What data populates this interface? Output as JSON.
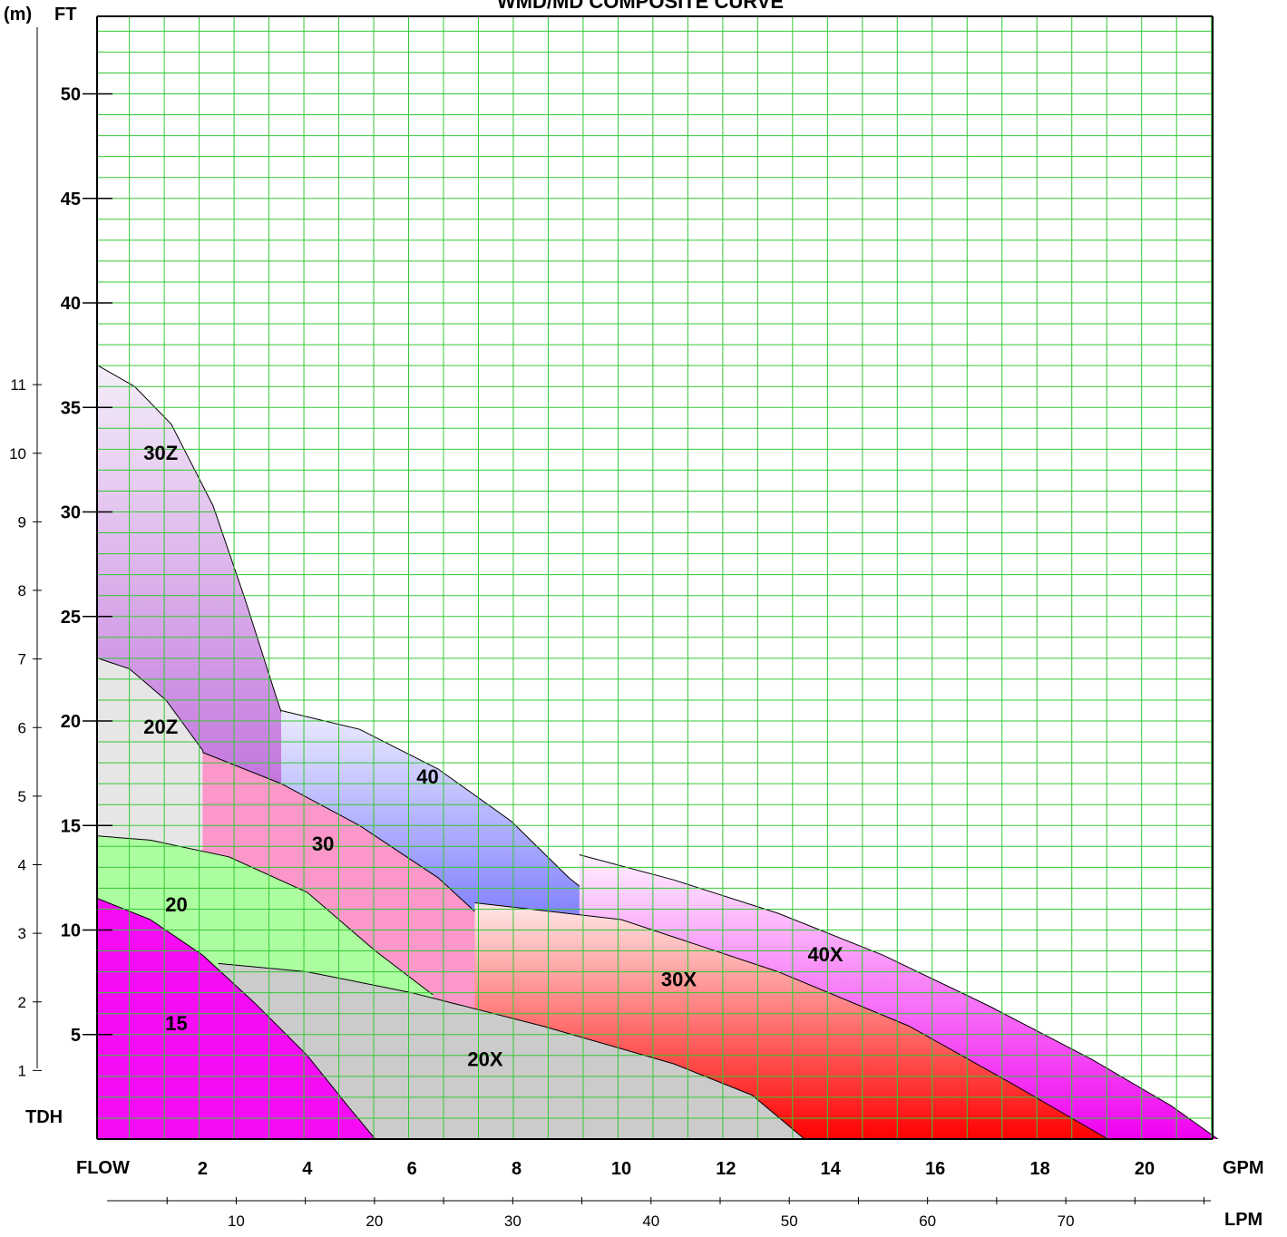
{
  "chart_data": {
    "type": "area",
    "title": "WMD/MD COMPOSITE CURVE",
    "y_axis": {
      "unit_label_ft": "FT",
      "unit_label_m": "(m)",
      "name": "TDH",
      "ft_ticks": [
        "5",
        "10",
        "15",
        "20",
        "25",
        "30",
        "35",
        "40",
        "45",
        "50"
      ],
      "m_ticks": [
        "1",
        "2",
        "3",
        "4",
        "5",
        "6",
        "7",
        "8",
        "9",
        "10",
        "11"
      ],
      "ylim_ft": [
        0,
        56
      ]
    },
    "x_axis": {
      "name": "FLOW",
      "unit_gpm": "GPM",
      "unit_lpm": "LPM",
      "gpm_ticks": [
        "2",
        "4",
        "6",
        "8",
        "10",
        "12",
        "14",
        "16",
        "18",
        "20"
      ],
      "lpm_ticks": [
        "10",
        "20",
        "30",
        "40",
        "50",
        "60",
        "70"
      ],
      "xlim_gpm": [
        0,
        21.4
      ]
    },
    "grid": true,
    "series": [
      {
        "name": "30Z",
        "color_top": "#f4eef8",
        "color_bottom": "#9a10c8",
        "label_pos": [
          1.2,
          32.5
        ],
        "curve": [
          [
            0,
            37.0
          ],
          [
            0.7,
            36.0
          ],
          [
            1.4,
            34.2
          ],
          [
            2.2,
            30.3
          ],
          [
            2.8,
            25.9
          ],
          [
            3.4,
            21.2
          ],
          [
            4.0,
            16.7
          ]
        ]
      },
      {
        "name": "20Z",
        "color": "#e6e6e6",
        "label_pos": [
          1.2,
          19.4
        ],
        "curve": [
          [
            0,
            23.0
          ],
          [
            0.6,
            22.5
          ],
          [
            1.3,
            21.0
          ],
          [
            2.0,
            18.6
          ],
          [
            2.7,
            13.5
          ]
        ]
      },
      {
        "name": "40",
        "color_top": "#ececff",
        "color_bottom": "#0f0fff",
        "label_pos": [
          6.3,
          17.0
        ],
        "curve": [
          [
            3.5,
            20.5
          ],
          [
            5.0,
            19.6
          ],
          [
            6.5,
            17.7
          ],
          [
            7.9,
            15.2
          ],
          [
            9.0,
            12.5
          ],
          [
            10.0,
            10.5
          ]
        ]
      },
      {
        "name": "30",
        "color": "#fb98c9",
        "label_pos": [
          4.3,
          13.8
        ],
        "curve": [
          [
            2.0,
            18.5
          ],
          [
            3.5,
            17.0
          ],
          [
            5.0,
            15.0
          ],
          [
            6.5,
            12.5
          ],
          [
            7.8,
            9.5
          ],
          [
            8.8,
            5.2
          ]
        ]
      },
      {
        "name": "20",
        "color": "#acfda0",
        "label_pos": [
          1.5,
          10.9
        ],
        "curve": [
          [
            0,
            14.5
          ],
          [
            1.0,
            14.3
          ],
          [
            2.5,
            13.5
          ],
          [
            4.0,
            11.8
          ],
          [
            5.3,
            9.0
          ],
          [
            6.4,
            6.9
          ]
        ]
      },
      {
        "name": "40X",
        "color_top": "#fff0ff",
        "color_bottom": "#f000f0",
        "label_pos": [
          13.9,
          8.5
        ],
        "curve": [
          [
            9.2,
            13.6
          ],
          [
            11.0,
            12.4
          ],
          [
            13.0,
            10.8
          ],
          [
            15.0,
            8.8
          ],
          [
            17.0,
            6.4
          ],
          [
            19.0,
            3.8
          ],
          [
            20.5,
            1.6
          ],
          [
            21.4,
            0
          ]
        ]
      },
      {
        "name": "30X",
        "color_top": "#ffe8e8",
        "color_bottom": "#ff0000",
        "label_pos": [
          11.1,
          7.3
        ],
        "curve": [
          [
            7.2,
            11.3
          ],
          [
            10.0,
            10.5
          ],
          [
            13.0,
            8.0
          ],
          [
            15.5,
            5.4
          ],
          [
            17.5,
            2.6
          ],
          [
            19.3,
            0
          ]
        ]
      },
      {
        "name": "20X",
        "color": "#cbcbcb",
        "label_pos": [
          7.4,
          3.5
        ],
        "curve": [
          [
            2.3,
            8.4
          ],
          [
            4.0,
            8.0
          ],
          [
            6.0,
            7.0
          ],
          [
            8.5,
            5.4
          ],
          [
            11.0,
            3.6
          ],
          [
            12.5,
            2.1
          ],
          [
            13.5,
            0
          ]
        ]
      },
      {
        "name": "15",
        "color": "#f50cf5",
        "label_pos": [
          1.5,
          5.2
        ],
        "curve": [
          [
            0,
            11.5
          ],
          [
            1.0,
            10.5
          ],
          [
            2.0,
            8.8
          ],
          [
            3.0,
            6.5
          ],
          [
            4.0,
            4.0
          ],
          [
            4.8,
            1.5
          ],
          [
            5.3,
            0
          ]
        ]
      }
    ]
  }
}
